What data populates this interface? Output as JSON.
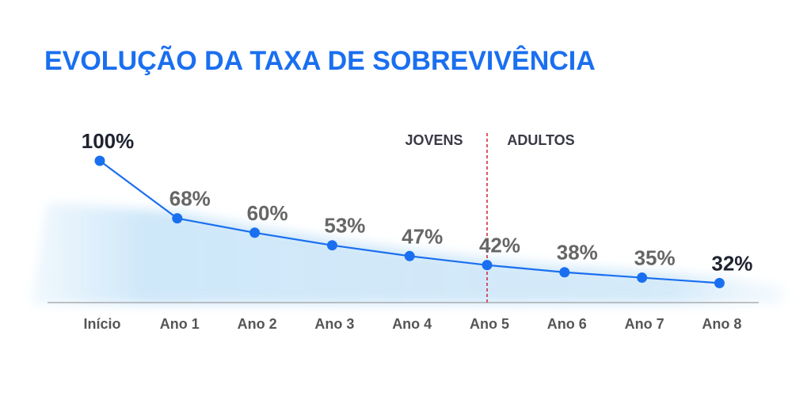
{
  "title": "EVOLUÇÃO DA TAXA DE SOBREVIVÊNCIA",
  "colors": {
    "title": "#1a6ff0",
    "line": "#1a6ff0",
    "point": "#1a6ff0",
    "label_dark": "#1f2330",
    "label_gray": "#666666",
    "divider": "#d0213a",
    "axis": "#888888",
    "watercolor": "#bfe0f7"
  },
  "sections": {
    "left_label": "JOVENS",
    "right_label": "ADULTOS",
    "divider_after_category": "Ano 5"
  },
  "chart_data": {
    "type": "line",
    "title": "EVOLUÇÃO DA TAXA DE SOBREVIVÊNCIA",
    "xlabel": "",
    "ylabel": "",
    "categories": [
      "Início",
      "Ano 1",
      "Ano 2",
      "Ano 3",
      "Ano 4",
      "Ano 5",
      "Ano 6",
      "Ano 7",
      "Ano 8"
    ],
    "values": [
      100,
      68,
      60,
      53,
      47,
      42,
      38,
      35,
      32
    ],
    "data_labels": [
      "100%",
      "68%",
      "60%",
      "53%",
      "47%",
      "42%",
      "38%",
      "35%",
      "32%"
    ],
    "highlighted_labels": [
      "Início",
      "Ano 8"
    ],
    "grid": false,
    "legend": "none"
  }
}
